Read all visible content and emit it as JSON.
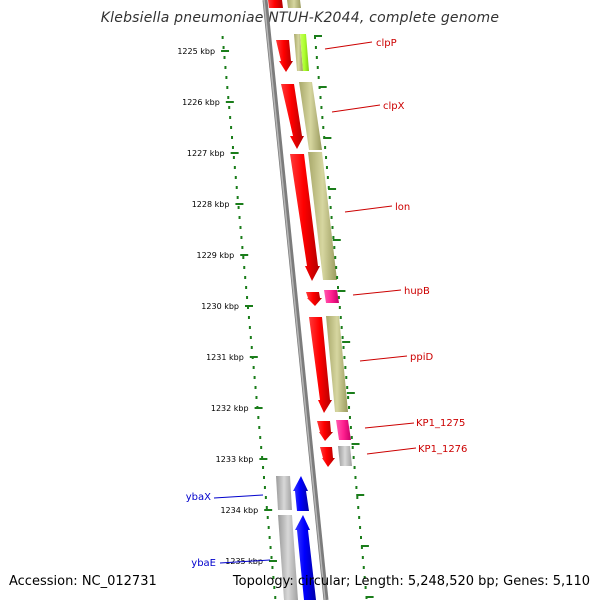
{
  "title": "Klebsiella pneumoniae NTUH-K2044, complete genome",
  "footer": {
    "accession": "Accession: NC_012731",
    "topology": "Topology: circular; Length: 5,248,520 bp; Genes: 5,110"
  },
  "axis": {
    "unit": "kbp",
    "ticks": [
      "1225 kbp",
      "1226 kbp",
      "1227 kbp",
      "1228 kbp",
      "1229 kbp",
      "1230 kbp",
      "1231 kbp",
      "1232 kbp",
      "1233 kbp",
      "1234 kbp",
      "1235 kbp"
    ]
  },
  "colors": {
    "ruler": "#1a7d1a",
    "backbone": "#888888",
    "forward_gene": "#ff0000",
    "reverse_gene": "#0000ff",
    "cds_track": "#bdbd80",
    "pink_cds": "#ff1f8f",
    "green_cds": "#adff2f",
    "grey_cds": "#b8b8b8",
    "label_forward": "#cc0000",
    "label_reverse": "#0000cc"
  },
  "gene_labels": [
    {
      "name": "clpP",
      "strand": "forward"
    },
    {
      "name": "clpX",
      "strand": "forward"
    },
    {
      "name": "lon",
      "strand": "forward"
    },
    {
      "name": "hupB",
      "strand": "forward"
    },
    {
      "name": "ppiD",
      "strand": "forward"
    },
    {
      "name": "KP1_1275",
      "strand": "forward"
    },
    {
      "name": "KP1_1276",
      "strand": "forward"
    },
    {
      "name": "ybaX",
      "strand": "reverse"
    },
    {
      "name": "ybaE",
      "strand": "reverse"
    }
  ]
}
